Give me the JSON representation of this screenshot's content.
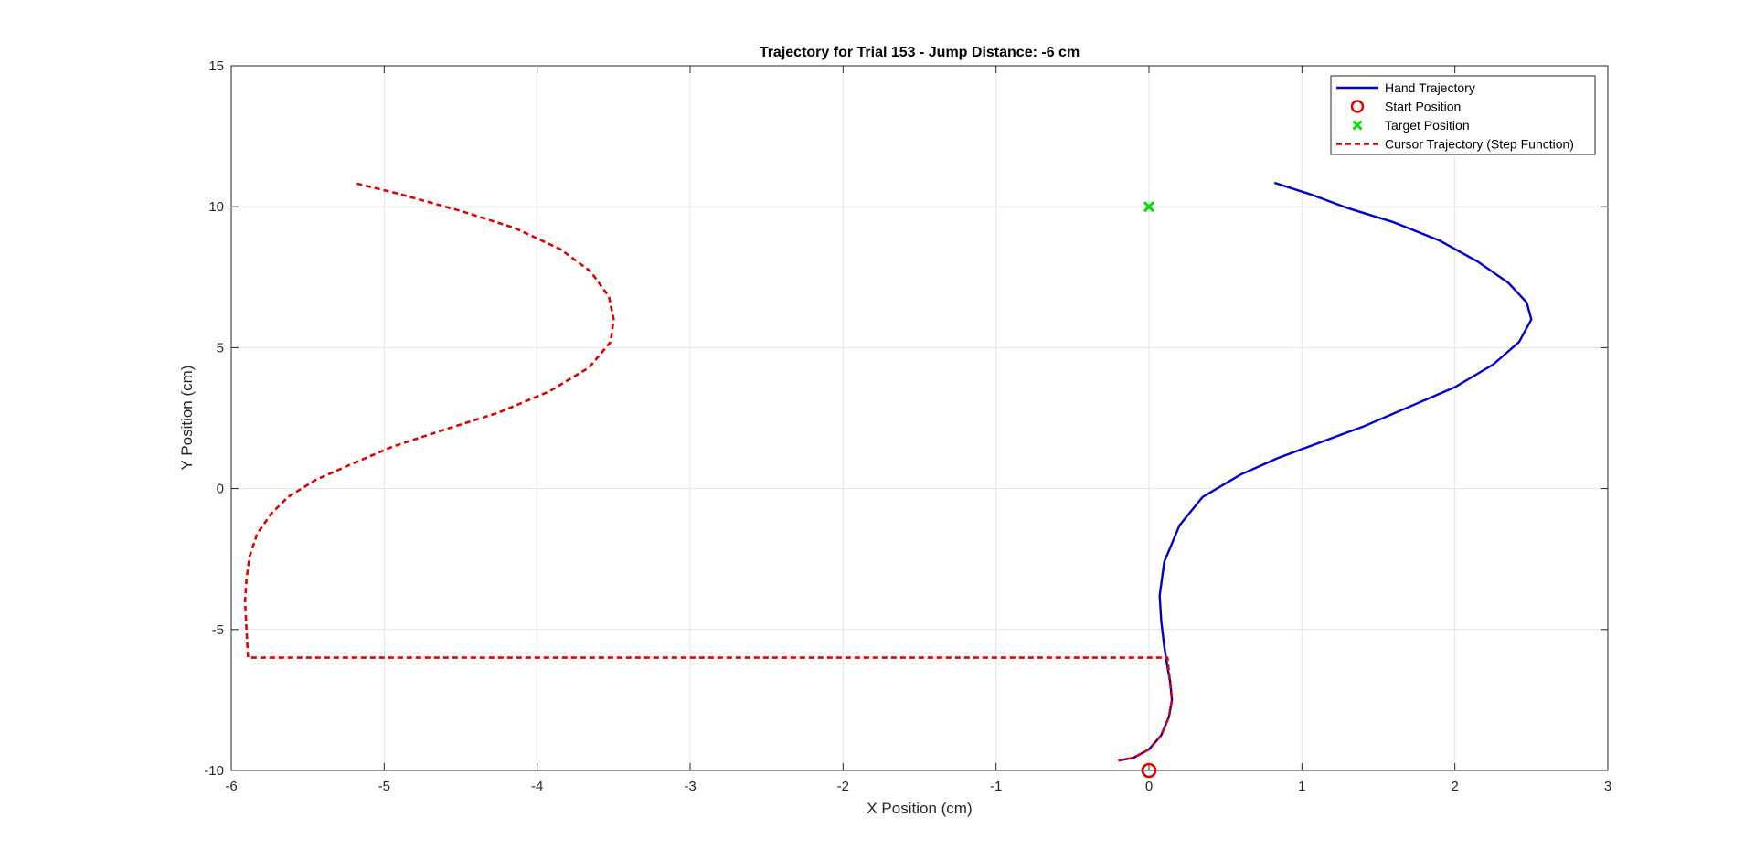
{
  "chart_data": {
    "type": "line",
    "title": "Trajectory for Trial 153 - Jump Distance: -6 cm",
    "xlabel": "X Position (cm)",
    "ylabel": "Y Position (cm)",
    "xlim": [
      -6,
      3
    ],
    "ylim": [
      -10,
      15
    ],
    "xticks": [
      -6,
      -5,
      -4,
      -3,
      -2,
      -1,
      0,
      1,
      2,
      3
    ],
    "yticks": [
      -10,
      -5,
      0,
      5,
      10,
      15
    ],
    "xtick_labels": [
      "-6",
      "-5",
      "-4",
      "-3",
      "-2",
      "-1",
      "0",
      "1",
      "2",
      "3"
    ],
    "ytick_labels": [
      "-10",
      "-5",
      "0",
      "5",
      "10",
      "15"
    ],
    "grid": true,
    "legend_position": "top-right",
    "series": [
      {
        "name": "Hand Trajectory",
        "style": "solid",
        "color": "#0000cc",
        "x": [
          -0.2,
          -0.1,
          0.0,
          0.08,
          0.13,
          0.15,
          0.14,
          0.12,
          0.1,
          0.08,
          0.07,
          0.1,
          0.2,
          0.35,
          0.6,
          0.85,
          1.1,
          1.4,
          1.7,
          2.0,
          2.25,
          2.42,
          2.5,
          2.47,
          2.35,
          2.15,
          1.9,
          1.6,
          1.3,
          1.05,
          0.82
        ],
        "y": [
          -9.65,
          -9.55,
          -9.25,
          -8.75,
          -8.1,
          -7.5,
          -6.9,
          -6.3,
          -5.6,
          -4.7,
          -3.8,
          -2.6,
          -1.3,
          -0.3,
          0.5,
          1.1,
          1.6,
          2.2,
          2.9,
          3.6,
          4.4,
          5.2,
          6.0,
          6.6,
          7.3,
          8.05,
          8.8,
          9.45,
          9.95,
          10.45,
          10.85
        ]
      },
      {
        "name": "Start Position",
        "style": "marker",
        "marker": "o",
        "color": "#e00000",
        "x": [
          0
        ],
        "y": [
          -10
        ]
      },
      {
        "name": "Target Position",
        "style": "marker",
        "marker": "x",
        "color": "#00dd00",
        "x": [
          0
        ],
        "y": [
          10
        ]
      },
      {
        "name": "Cursor Trajectory (Step Function)",
        "style": "dashed",
        "color": "#e00000",
        "x": [
          -0.2,
          -0.1,
          0.0,
          0.08,
          0.13,
          0.15,
          0.12,
          -5.89,
          -5.9,
          -5.91,
          -5.9,
          -5.88,
          -5.83,
          -5.74,
          -5.63,
          -5.45,
          -5.2,
          -4.94,
          -4.6,
          -4.25,
          -3.92,
          -3.66,
          -3.52,
          -3.5,
          -3.53,
          -3.65,
          -3.85,
          -4.15,
          -4.5,
          -4.9,
          -5.2
        ],
        "y": [
          -9.65,
          -9.55,
          -9.25,
          -8.75,
          -8.1,
          -7.5,
          -6.0,
          -6.0,
          -5.0,
          -4.0,
          -3.2,
          -2.4,
          -1.6,
          -0.9,
          -0.3,
          0.3,
          0.9,
          1.5,
          2.1,
          2.7,
          3.45,
          4.3,
          5.2,
          6.0,
          6.8,
          7.7,
          8.5,
          9.25,
          9.85,
          10.45,
          10.85
        ]
      }
    ]
  }
}
